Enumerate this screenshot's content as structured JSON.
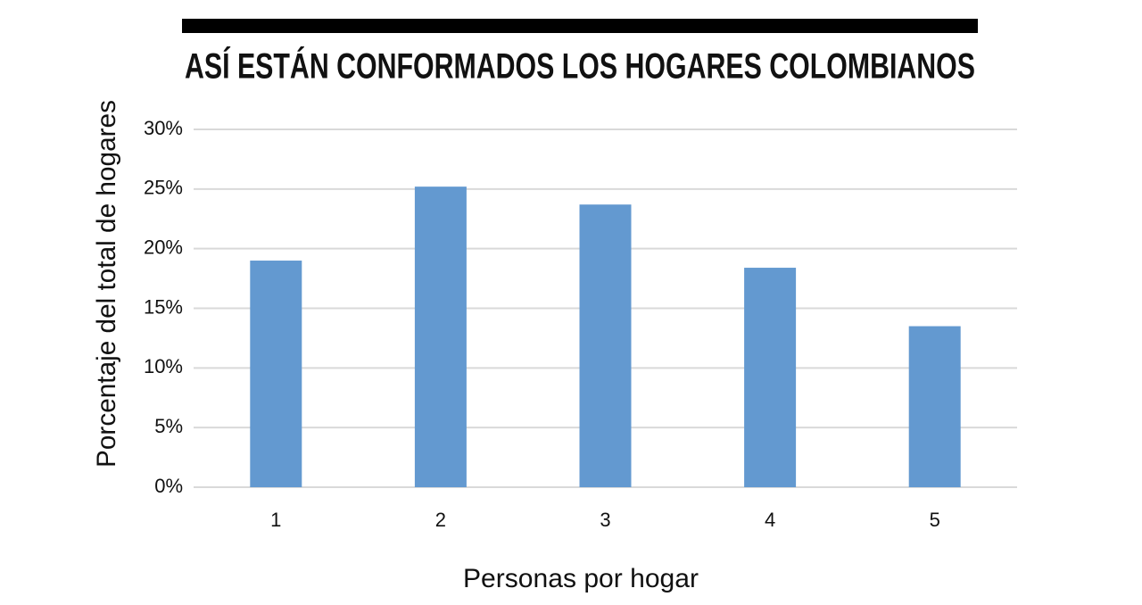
{
  "chart_data": {
    "type": "bar",
    "title": "ASÍ ESTÁN CONFORMADOS LOS HOGARES COLOMBIANOS",
    "x_label": "Personas por hogar",
    "y_label": "Porcentaje del total de hogares",
    "categories": [
      "1",
      "2",
      "3",
      "4",
      "5"
    ],
    "values": [
      19,
      25.2,
      23.7,
      18.4,
      13.5
    ],
    "color": "#6399d0",
    "ylim": [
      0,
      30
    ],
    "yticks": [
      {
        "value": 0,
        "label": "0%"
      },
      {
        "value": 5,
        "label": "5%"
      },
      {
        "value": 10,
        "label": "10%"
      },
      {
        "value": 15,
        "label": "15%"
      },
      {
        "value": 20,
        "label": "20%"
      },
      {
        "value": 25,
        "label": "25%"
      },
      {
        "value": 30,
        "label": "30%"
      }
    ],
    "grid": true
  }
}
